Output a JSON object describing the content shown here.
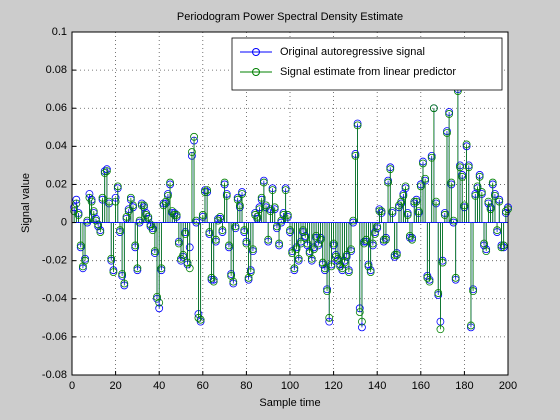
{
  "chart_data": {
    "type": "stem",
    "title": "Periodogram Power Spectral Density Estimate",
    "x_label": "Sample time",
    "y_label": "Signal value",
    "xlim": [
      0,
      200
    ],
    "xticks": [
      0,
      20,
      40,
      60,
      80,
      100,
      120,
      140,
      160,
      180,
      200
    ],
    "ylim": [
      -0.08,
      0.1
    ],
    "yticks": [
      -0.08,
      -0.06,
      -0.04,
      -0.02,
      0,
      0.02,
      0.04,
      0.06,
      0.08,
      0.1
    ],
    "grid": true,
    "legend": "upper right",
    "x": [
      1,
      2,
      3,
      4,
      5,
      6,
      7,
      8,
      9,
      10,
      11,
      12,
      13,
      14,
      15,
      16,
      17,
      18,
      19,
      20,
      21,
      22,
      23,
      24,
      25,
      26,
      27,
      28,
      29,
      30,
      31,
      32,
      33,
      34,
      35,
      36,
      37,
      38,
      39,
      40,
      41,
      42,
      43,
      44,
      45,
      46,
      47,
      48,
      49,
      50,
      51,
      52,
      53,
      54,
      55,
      56,
      57,
      58,
      59,
      60,
      61,
      62,
      63,
      64,
      65,
      66,
      67,
      68,
      69,
      70,
      71,
      72,
      73,
      74,
      75,
      76,
      77,
      78,
      79,
      80,
      81,
      82,
      83,
      84,
      85,
      86,
      87,
      88,
      89,
      90,
      91,
      92,
      93,
      94,
      95,
      96,
      97,
      98,
      99,
      100,
      101,
      102,
      103,
      104,
      105,
      106,
      107,
      108,
      109,
      110,
      111,
      112,
      113,
      114,
      115,
      116,
      117,
      118,
      119,
      120,
      121,
      122,
      123,
      124,
      125,
      126,
      127,
      128,
      129,
      130,
      131,
      132,
      133,
      134,
      135,
      136,
      137,
      138,
      139,
      140,
      141,
      142,
      143,
      144,
      145,
      146,
      147,
      148,
      149,
      150,
      151,
      152,
      153,
      154,
      155,
      156,
      157,
      158,
      159,
      160,
      161,
      162,
      163,
      164,
      165,
      166,
      167,
      168,
      169,
      170,
      171,
      172,
      173,
      174,
      175,
      176,
      177,
      178,
      179,
      180,
      181,
      182,
      183,
      184,
      185,
      186,
      187,
      188,
      189,
      190,
      191,
      192,
      193,
      194,
      195,
      196,
      197,
      198,
      199,
      200
    ],
    "series": [
      {
        "name": "Original autoregressive signal",
        "color": "#0000ff",
        "values": [
          0.008,
          0.012,
          0.005,
          -0.013,
          -0.024,
          -0.019,
          0.0,
          0.015,
          0.012,
          0.005,
          0.002,
          -0.002,
          -0.004,
          0.012,
          0.027,
          0.028,
          0.01,
          -0.02,
          -0.025,
          0.013,
          0.018,
          -0.005,
          -0.028,
          -0.033,
          0.002,
          0.007,
          0.012,
          0.008,
          -0.013,
          -0.025,
          0.0,
          0.01,
          0.008,
          0.005,
          0.002,
          -0.002,
          -0.003,
          -0.016,
          -0.04,
          -0.045,
          -0.025,
          0.01,
          0.01,
          0.015,
          0.02,
          0.005,
          0.005,
          0.003,
          -0.01,
          -0.02,
          -0.018,
          -0.005,
          -0.022,
          -0.013,
          0.035,
          0.043,
          0.0,
          -0.048,
          -0.052,
          0.003,
          0.017,
          0.016,
          -0.006,
          -0.03,
          -0.03,
          -0.01,
          0.002,
          0.002,
          -0.005,
          0.02,
          0.015,
          -0.013,
          -0.027,
          -0.032,
          -0.003,
          0.013,
          0.008,
          0.016,
          -0.005,
          -0.01,
          -0.03,
          -0.025,
          -0.015,
          0.005,
          0.002,
          0.008,
          0.012,
          0.022,
          0.008,
          -0.01,
          0.007,
          0.018,
          0.007,
          -0.003,
          -0.012,
          0.0,
          0.005,
          0.018,
          0.003,
          -0.005,
          -0.015,
          -0.025,
          -0.013,
          -0.02,
          -0.01,
          -0.005,
          -0.007,
          -0.012,
          -0.015,
          -0.02,
          -0.013,
          -0.008,
          -0.012,
          -0.008,
          -0.022,
          -0.025,
          -0.035,
          -0.052,
          -0.022,
          -0.012,
          -0.017,
          -0.02,
          -0.022,
          -0.025,
          -0.02,
          -0.018,
          -0.025,
          -0.015,
          0.0,
          0.036,
          0.052,
          -0.045,
          -0.055,
          -0.01,
          -0.01,
          -0.022,
          -0.025,
          -0.012,
          -0.005,
          -0.003,
          0.007,
          0.005,
          -0.01,
          -0.008,
          0.022,
          0.029,
          0.005,
          -0.018,
          -0.016,
          0.008,
          0.01,
          0.015,
          0.018,
          0.005,
          -0.008,
          -0.008,
          0.01,
          0.012,
          0.005,
          0.02,
          0.032,
          0.022,
          -0.028,
          -0.03,
          0.035,
          0.06,
          0.01,
          -0.038,
          -0.052,
          -0.02,
          0.005,
          0.048,
          0.058,
          0.02,
          0.0,
          -0.03,
          0.07,
          0.03,
          0.025,
          0.008,
          0.04,
          0.03,
          -0.055,
          -0.035,
          0.015,
          0.018,
          0.025,
          0.015,
          -0.012,
          -0.014,
          0.01,
          0.008,
          0.02,
          0.015,
          -0.005,
          0.012,
          -0.012,
          -0.013,
          0.005,
          0.008
        ]
      },
      {
        "name": "Signal estimate from linear predictor",
        "color": "#008000",
        "values": [
          0.006,
          0.01,
          0.004,
          -0.012,
          -0.023,
          -0.02,
          0.001,
          0.013,
          0.011,
          0.006,
          0.001,
          -0.001,
          -0.005,
          0.013,
          0.026,
          0.027,
          0.011,
          -0.019,
          -0.026,
          0.011,
          0.019,
          -0.004,
          -0.027,
          -0.032,
          0.003,
          0.006,
          0.013,
          0.009,
          -0.012,
          -0.024,
          0.001,
          0.009,
          0.009,
          0.004,
          0.003,
          -0.001,
          -0.004,
          -0.015,
          -0.039,
          -0.042,
          -0.024,
          0.009,
          0.011,
          0.014,
          0.021,
          0.006,
          0.004,
          0.004,
          -0.011,
          -0.019,
          -0.017,
          -0.006,
          -0.021,
          -0.024,
          0.037,
          0.045,
          0.001,
          -0.05,
          -0.051,
          0.004,
          0.016,
          0.017,
          -0.005,
          -0.029,
          -0.031,
          -0.009,
          0.001,
          0.003,
          -0.004,
          0.021,
          0.014,
          -0.012,
          -0.028,
          -0.031,
          -0.002,
          0.012,
          0.009,
          0.015,
          -0.004,
          -0.011,
          -0.029,
          -0.026,
          -0.014,
          0.004,
          0.003,
          0.007,
          0.013,
          0.021,
          0.009,
          -0.009,
          0.006,
          0.017,
          0.008,
          -0.002,
          -0.011,
          0.001,
          0.004,
          0.017,
          0.004,
          -0.004,
          -0.016,
          -0.024,
          -0.014,
          -0.019,
          -0.011,
          -0.004,
          -0.008,
          -0.011,
          -0.016,
          -0.019,
          -0.014,
          -0.007,
          -0.011,
          -0.009,
          -0.021,
          -0.024,
          -0.036,
          -0.05,
          -0.023,
          -0.011,
          -0.018,
          -0.019,
          -0.023,
          -0.024,
          -0.021,
          -0.017,
          -0.026,
          -0.014,
          0.001,
          0.035,
          0.051,
          -0.047,
          -0.052,
          -0.011,
          -0.009,
          -0.023,
          -0.026,
          -0.011,
          -0.006,
          -0.002,
          0.006,
          0.006,
          -0.009,
          -0.009,
          0.021,
          0.028,
          0.006,
          -0.017,
          -0.017,
          0.009,
          0.011,
          0.014,
          0.019,
          0.004,
          -0.007,
          -0.009,
          0.011,
          0.011,
          0.006,
          0.019,
          0.031,
          0.023,
          -0.029,
          -0.031,
          0.034,
          0.06,
          0.011,
          -0.037,
          -0.056,
          -0.021,
          0.004,
          0.047,
          0.057,
          0.021,
          0.001,
          -0.029,
          0.069,
          0.029,
          0.024,
          0.009,
          0.041,
          0.029,
          -0.054,
          -0.036,
          0.014,
          0.019,
          0.024,
          0.016,
          -0.011,
          -0.015,
          0.011,
          0.007,
          0.021,
          0.014,
          -0.004,
          0.011,
          -0.013,
          -0.012,
          0.006,
          0.007
        ]
      }
    ]
  }
}
